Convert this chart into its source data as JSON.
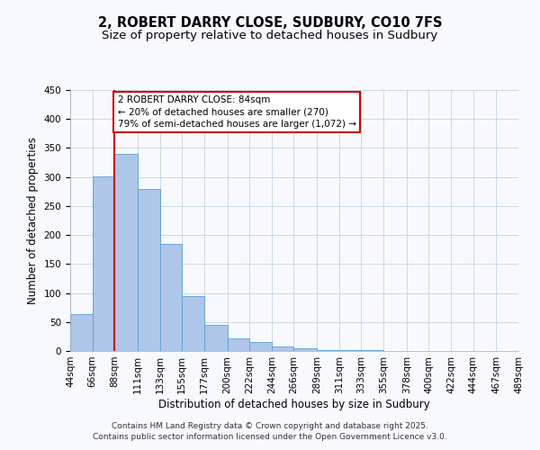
{
  "title": "2, ROBERT DARRY CLOSE, SUDBURY, CO10 7FS",
  "subtitle": "Size of property relative to detached houses in Sudbury",
  "xlabel": "Distribution of detached houses by size in Sudbury",
  "ylabel": "Number of detached properties",
  "bar_left_edges": [
    44,
    66,
    88,
    111,
    133,
    155,
    177,
    200,
    222,
    244,
    266,
    289,
    311,
    333,
    355,
    378,
    400,
    422,
    444,
    467
  ],
  "bar_heights": [
    63,
    301,
    340,
    280,
    185,
    95,
    45,
    22,
    15,
    7,
    5,
    2,
    1,
    1,
    0,
    0,
    0,
    0,
    0,
    0
  ],
  "bar_widths": [
    22,
    22,
    23,
    22,
    22,
    22,
    23,
    22,
    22,
    22,
    23,
    22,
    22,
    22,
    23,
    22,
    22,
    22,
    23,
    22
  ],
  "bar_color": "#aec6e8",
  "bar_edge_color": "#5a9fd4",
  "ylim": [
    0,
    450
  ],
  "yticks": [
    0,
    50,
    100,
    150,
    200,
    250,
    300,
    350,
    400,
    450
  ],
  "xtick_labels": [
    "44sqm",
    "66sqm",
    "88sqm",
    "111sqm",
    "133sqm",
    "155sqm",
    "177sqm",
    "200sqm",
    "222sqm",
    "244sqm",
    "266sqm",
    "289sqm",
    "311sqm",
    "333sqm",
    "355sqm",
    "378sqm",
    "400sqm",
    "422sqm",
    "444sqm",
    "467sqm",
    "489sqm"
  ],
  "xtick_positions": [
    44,
    66,
    88,
    111,
    133,
    155,
    177,
    200,
    222,
    244,
    266,
    289,
    311,
    333,
    355,
    378,
    400,
    422,
    444,
    467,
    489
  ],
  "property_line_x": 88,
  "annotation_title": "2 ROBERT DARRY CLOSE: 84sqm",
  "annotation_line1": "← 20% of detached houses are smaller (270)",
  "annotation_line2": "79% of semi-detached houses are larger (1,072) →",
  "annotation_box_color": "#ffffff",
  "annotation_box_edge_color": "#cc0000",
  "vline_color": "#cc0000",
  "background_color": "#f8f9ff",
  "grid_color": "#c8d8e8",
  "footer_line1": "Contains HM Land Registry data © Crown copyright and database right 2025.",
  "footer_line2": "Contains public sector information licensed under the Open Government Licence v3.0.",
  "title_fontsize": 10.5,
  "subtitle_fontsize": 9.5,
  "axis_label_fontsize": 8.5,
  "tick_fontsize": 7.5,
  "annotation_fontsize": 7.5,
  "footer_fontsize": 6.5
}
